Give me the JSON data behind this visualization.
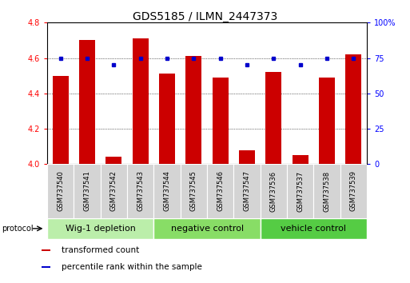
{
  "title": "GDS5185 / ILMN_2447373",
  "samples": [
    "GSM737540",
    "GSM737541",
    "GSM737542",
    "GSM737543",
    "GSM737544",
    "GSM737545",
    "GSM737546",
    "GSM737547",
    "GSM737536",
    "GSM737537",
    "GSM737538",
    "GSM737539"
  ],
  "transformed_count": [
    4.5,
    4.7,
    4.04,
    4.71,
    4.51,
    4.61,
    4.49,
    4.08,
    4.52,
    4.05,
    4.49,
    4.62
  ],
  "percentile_rank": [
    75,
    75,
    70,
    75,
    75,
    75,
    75,
    70,
    75,
    70,
    75,
    75
  ],
  "bar_color": "#cc0000",
  "dot_color": "#0000cc",
  "ylim_left": [
    4.0,
    4.8
  ],
  "ylim_right": [
    0,
    100
  ],
  "yticks_left": [
    4.0,
    4.2,
    4.4,
    4.6,
    4.8
  ],
  "yticks_right": [
    0,
    25,
    50,
    75,
    100
  ],
  "groups": [
    {
      "label": "Wig-1 depletion",
      "indices": [
        0,
        1,
        2,
        3
      ],
      "color": "#bbeeaa"
    },
    {
      "label": "negative control",
      "indices": [
        4,
        5,
        6,
        7
      ],
      "color": "#88dd66"
    },
    {
      "label": "vehicle control",
      "indices": [
        8,
        9,
        10,
        11
      ],
      "color": "#55cc44"
    }
  ],
  "protocol_label": "protocol",
  "legend": [
    {
      "label": "transformed count",
      "color": "#cc0000"
    },
    {
      "label": "percentile rank within the sample",
      "color": "#0000cc"
    }
  ],
  "background_color": "#ffffff",
  "title_fontsize": 10,
  "tick_fontsize": 7,
  "sample_label_fontsize": 6,
  "group_label_fontsize": 8,
  "legend_fontsize": 7.5,
  "bar_width": 0.6
}
